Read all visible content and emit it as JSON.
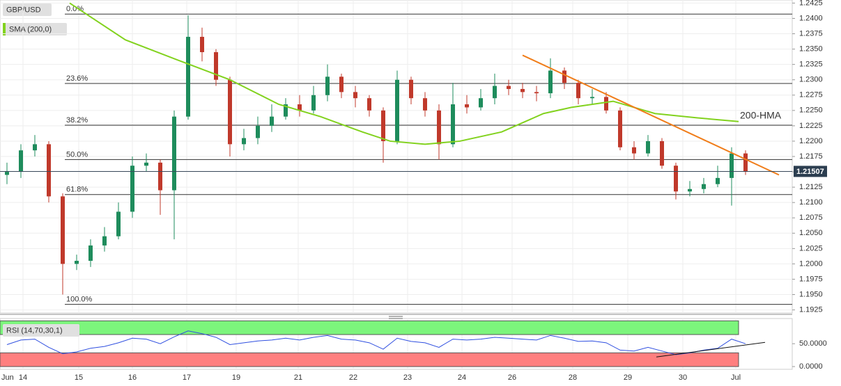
{
  "chart_data": [
    {
      "type": "candlestick",
      "title": "GBP/USD",
      "x_month_label": "Jun",
      "x": [
        0.5,
        1.5,
        2.5,
        3.5,
        4.5,
        5.5,
        6.5,
        7.5,
        8.5,
        9.5,
        10.5,
        11.5,
        12.5,
        13.5,
        14.5,
        15.5,
        16.5,
        17.5,
        18.5,
        19.5,
        20.5,
        21.5,
        22.5,
        23.5,
        24.5,
        25.5,
        26.5,
        27.5,
        28.5,
        29.5,
        30.5,
        31.5,
        32.5,
        33.5,
        34.5,
        35.5,
        36.5,
        37.5,
        38.5,
        39.5,
        40.5,
        41.5,
        42.5,
        43.5,
        44.5,
        45.5,
        46.5,
        47.5,
        48.5,
        49.5,
        50.5,
        51.5,
        52.5,
        53.5
      ],
      "open": [
        1.2145,
        1.215,
        1.2185,
        1.2195,
        1.211,
        1.2,
        1.2005,
        1.203,
        1.2045,
        1.2085,
        1.216,
        1.2165,
        1.212,
        1.224,
        1.237,
        1.2345,
        1.23,
        1.2195,
        1.2205,
        1.2225,
        1.224,
        1.226,
        1.225,
        1.2275,
        1.2305,
        1.228,
        1.227,
        1.225,
        1.22,
        1.23,
        1.227,
        1.225,
        1.2195,
        1.226,
        1.2255,
        1.227,
        1.229,
        1.2285,
        1.228,
        1.2278,
        1.2315,
        1.2295,
        1.227,
        1.2272,
        1.225,
        1.219,
        1.218,
        1.22,
        1.216,
        1.2118,
        1.2122,
        1.213,
        1.214,
        1.218
      ],
      "high": [
        1.2165,
        1.2195,
        1.221,
        1.22,
        1.2115,
        1.2015,
        1.204,
        1.206,
        1.21,
        1.2175,
        1.218,
        1.217,
        1.225,
        1.2405,
        1.2385,
        1.235,
        1.2305,
        1.222,
        1.224,
        1.226,
        1.227,
        1.2275,
        1.229,
        1.2325,
        1.231,
        1.229,
        1.2275,
        1.2255,
        1.2315,
        1.2305,
        1.228,
        1.226,
        1.2295,
        1.2275,
        1.2285,
        1.231,
        1.23,
        1.2295,
        1.229,
        1.2335,
        1.232,
        1.23,
        1.2285,
        1.228,
        1.2255,
        1.22,
        1.221,
        1.2205,
        1.2165,
        1.2135,
        1.214,
        1.216,
        1.219,
        1.2185
      ],
      "low": [
        1.213,
        1.214,
        1.2175,
        1.21,
        1.195,
        1.199,
        1.1995,
        1.202,
        1.204,
        1.2075,
        1.215,
        1.208,
        1.204,
        1.2235,
        1.233,
        1.229,
        1.2175,
        1.2185,
        1.2195,
        1.2215,
        1.2235,
        1.224,
        1.2245,
        1.2265,
        1.227,
        1.2255,
        1.224,
        1.2165,
        1.2195,
        1.226,
        1.224,
        1.217,
        1.219,
        1.2245,
        1.225,
        1.226,
        1.2275,
        1.227,
        1.2265,
        1.227,
        1.2285,
        1.226,
        1.226,
        1.2245,
        1.2185,
        1.217,
        1.2175,
        1.2155,
        1.2105,
        1.211,
        1.2115,
        1.2125,
        1.2095,
        1.2145
      ],
      "close": [
        1.215,
        1.2185,
        1.2195,
        1.211,
        1.2,
        1.2005,
        1.203,
        1.2045,
        1.2085,
        1.216,
        1.2165,
        1.212,
        1.224,
        1.237,
        1.2345,
        1.23,
        1.2195,
        1.2205,
        1.2225,
        1.224,
        1.226,
        1.225,
        1.2275,
        1.2305,
        1.228,
        1.227,
        1.225,
        1.22,
        1.23,
        1.227,
        1.225,
        1.2195,
        1.226,
        1.2255,
        1.227,
        1.229,
        1.2285,
        1.228,
        1.2278,
        1.2315,
        1.2295,
        1.227,
        1.2272,
        1.225,
        1.219,
        1.218,
        1.22,
        1.216,
        1.2118,
        1.2122,
        1.213,
        1.214,
        1.218,
        1.2151
      ],
      "up_color": "#1e8c5c",
      "down_color": "#c0392b",
      "series": [
        {
          "name": "SMA (200,0)",
          "color": "#82d21e",
          "x": [
            5,
            9,
            13,
            16.5,
            20,
            23,
            26,
            28,
            30.5,
            33,
            36,
            39,
            41,
            44,
            47,
            50,
            53
          ],
          "values": [
            1.2425,
            1.2365,
            1.233,
            1.23,
            1.226,
            1.224,
            1.2215,
            1.22,
            1.2195,
            1.22,
            1.2215,
            1.2245,
            1.2255,
            1.2265,
            1.2245,
            1.2238,
            1.2232
          ]
        }
      ],
      "annotation": "200-HMA",
      "trendline": {
        "color": "#f07d1a",
        "x": [
          37.5,
          55.9
        ],
        "values": [
          1.234,
          1.2145
        ]
      },
      "fib_levels": [
        {
          "value": 1.2407,
          "label": "0.0%"
        },
        {
          "value": 1.2294,
          "label": "23.6%"
        },
        {
          "value": 1.2226,
          "label": "38.2%"
        },
        {
          "value": 1.217,
          "label": "50.0%"
        },
        {
          "value": 1.2113,
          "label": "61.8%"
        },
        {
          "value": 1.1934,
          "label": "100.0%"
        }
      ],
      "last_price": 1.21507,
      "xlim": [
        0,
        56.85
      ],
      "xticks": [
        {
          "value": 1.65,
          "label": "14"
        },
        {
          "value": 5.65,
          "label": "15"
        },
        {
          "value": 9.5,
          "label": "16"
        },
        {
          "value": 13.4,
          "label": "17"
        },
        {
          "value": 16.95,
          "label": "19"
        },
        {
          "value": 21.4,
          "label": "21"
        },
        {
          "value": 25.35,
          "label": "22"
        },
        {
          "value": 29.25,
          "label": "23"
        },
        {
          "value": 33.15,
          "label": "24"
        },
        {
          "value": 36.75,
          "label": "26"
        },
        {
          "value": 41.1,
          "label": "28"
        },
        {
          "value": 45.05,
          "label": "29"
        },
        {
          "value": 49,
          "label": "30"
        },
        {
          "value": 52.8,
          "label": "Jul"
        }
      ],
      "ylim": [
        1.192,
        1.243
      ],
      "yticks": [
        {
          "value": 1.1925,
          "label": "1.1925"
        },
        {
          "value": 1.195,
          "label": "1.1950"
        },
        {
          "value": 1.1975,
          "label": "1.1975"
        },
        {
          "value": 1.2,
          "label": "1.2000"
        },
        {
          "value": 1.2025,
          "label": "1.2025"
        },
        {
          "value": 1.205,
          "label": "1.2050"
        },
        {
          "value": 1.2075,
          "label": "1.2075"
        },
        {
          "value": 1.21,
          "label": "1.2100"
        },
        {
          "value": 1.2125,
          "label": "1.2125"
        },
        {
          "value": 1.215,
          "label": "1.2150"
        },
        {
          "value": 1.2175,
          "label": "1.2175"
        },
        {
          "value": 1.22,
          "label": "1.2200"
        },
        {
          "value": 1.2225,
          "label": "1.2225"
        },
        {
          "value": 1.225,
          "label": "1.2250"
        },
        {
          "value": 1.2275,
          "label": "1.2275"
        },
        {
          "value": 1.23,
          "label": "1.2300"
        },
        {
          "value": 1.2325,
          "label": "1.2325"
        },
        {
          "value": 1.235,
          "label": "1.2350"
        },
        {
          "value": 1.2375,
          "label": "1.2375"
        },
        {
          "value": 1.24,
          "label": "1.2400"
        },
        {
          "value": 1.2425,
          "label": "1.2425"
        }
      ],
      "grid": true
    },
    {
      "type": "line",
      "title": "RSI (14,70,30,1)",
      "x": [
        0.5,
        1.5,
        2.5,
        3.5,
        4.5,
        5.5,
        6.5,
        7.5,
        8.5,
        9.5,
        10.5,
        11.5,
        12.5,
        13.5,
        14.5,
        15.5,
        16.5,
        17.5,
        18.5,
        19.5,
        20.5,
        21.5,
        22.5,
        23.5,
        24.5,
        25.5,
        26.5,
        27.5,
        28.5,
        29.5,
        30.5,
        31.5,
        32.5,
        33.5,
        34.5,
        35.5,
        36.5,
        37.5,
        38.5,
        39.5,
        40.5,
        41.5,
        42.5,
        43.5,
        44.5,
        45.5,
        46.5,
        47.5,
        48.5,
        49.5,
        50.5,
        51.5,
        52.5,
        53.5
      ],
      "values": [
        48,
        58,
        60,
        42,
        28,
        32,
        40,
        44,
        52,
        62,
        60,
        50,
        65,
        78,
        72,
        64,
        48,
        52,
        56,
        58,
        62,
        58,
        64,
        68,
        60,
        58,
        52,
        38,
        62,
        55,
        52,
        42,
        60,
        58,
        60,
        64,
        62,
        60,
        58,
        68,
        62,
        55,
        56,
        52,
        36,
        34,
        42,
        34,
        26,
        30,
        36,
        40,
        60,
        50
      ],
      "color": "#2f4fe0",
      "upper_band": {
        "range": [
          70,
          100
        ],
        "color": "#7cf57c"
      },
      "lower_band": {
        "range": [
          0,
          30
        ],
        "color": "#ff7f7f"
      },
      "trendline": {
        "color": "#111111",
        "x": [
          47.1,
          54.9
        ],
        "values": [
          21,
          53
        ]
      },
      "xlim": [
        0,
        56.85
      ],
      "ylim": [
        -6,
        105
      ],
      "yticks": [
        {
          "value": 0,
          "label": "0.0000"
        },
        {
          "value": 50,
          "label": "50.0000"
        }
      ]
    }
  ]
}
